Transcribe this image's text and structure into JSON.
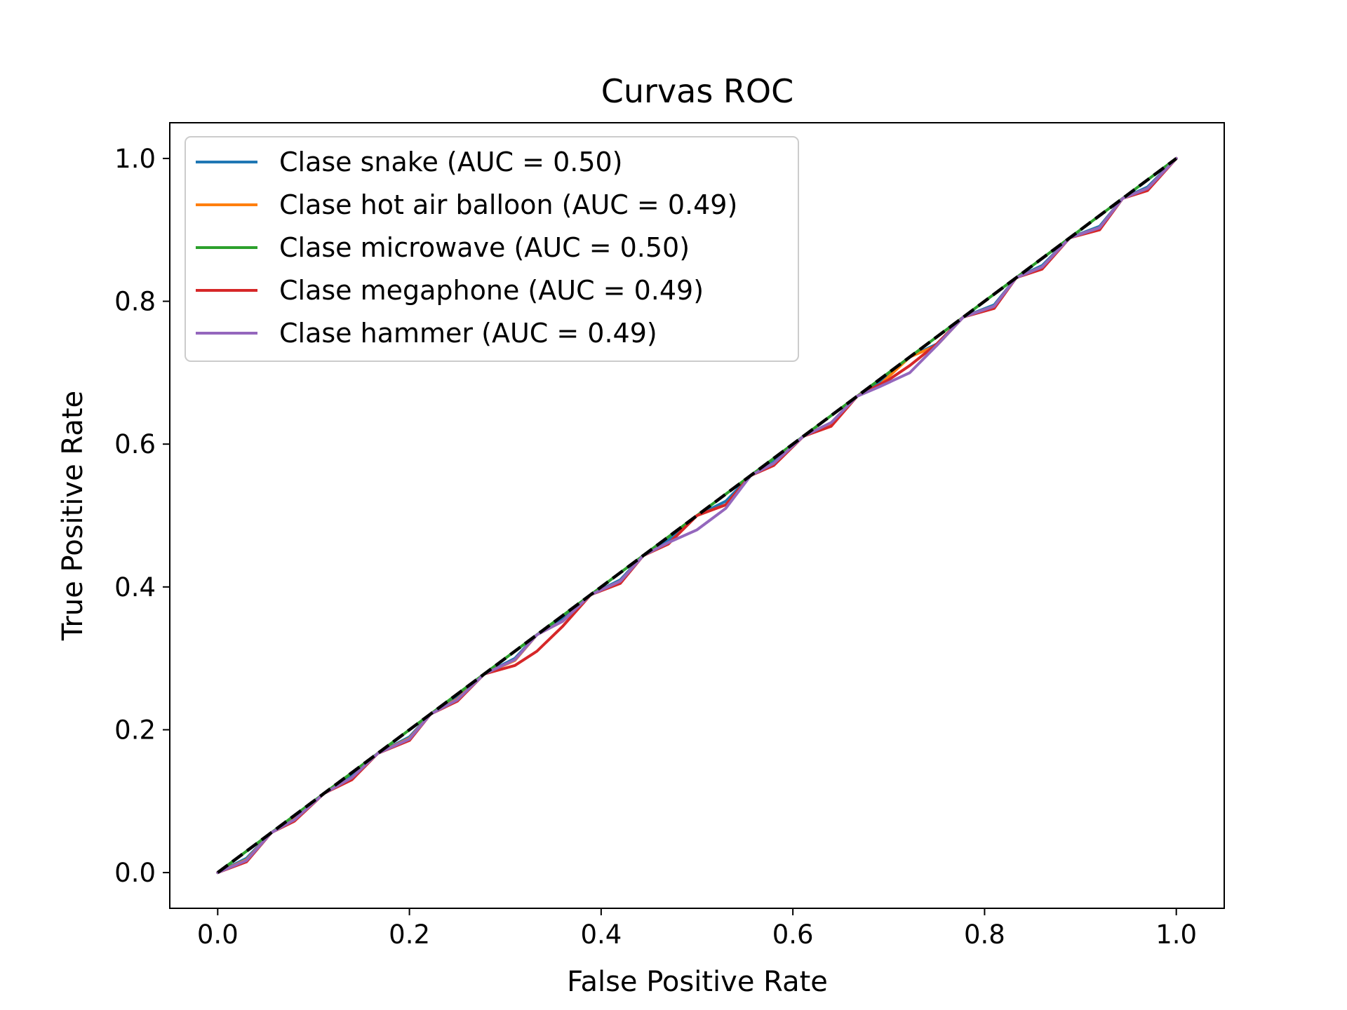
{
  "chart_data": {
    "type": "line",
    "title": "Curvas ROC",
    "xlabel": "False Positive Rate",
    "ylabel": "True Positive Rate",
    "xlim": [
      -0.05,
      1.05
    ],
    "ylim": [
      -0.05,
      1.05
    ],
    "xticks": [
      0.0,
      0.2,
      0.4,
      0.6,
      0.8,
      1.0
    ],
    "yticks": [
      0.0,
      0.2,
      0.4,
      0.6,
      0.8,
      1.0
    ],
    "xtick_labels": [
      "0.0",
      "0.2",
      "0.4",
      "0.6",
      "0.8",
      "1.0"
    ],
    "ytick_labels": [
      "0.0",
      "0.2",
      "0.4",
      "0.6",
      "0.8",
      "1.0"
    ],
    "grid": false,
    "legend_position": "upper-left",
    "series": [
      {
        "name": "Clase snake (AUC = 0.50)",
        "color": "#1f77b4",
        "x": [
          0.0,
          0.03,
          0.056,
          0.08,
          0.111,
          0.14,
          0.167,
          0.2,
          0.222,
          0.25,
          0.278,
          0.31,
          0.333,
          0.36,
          0.389,
          0.42,
          0.444,
          0.47,
          0.5,
          0.53,
          0.556,
          0.58,
          0.611,
          0.64,
          0.667,
          0.69,
          0.722,
          0.75,
          0.778,
          0.81,
          0.833,
          0.86,
          0.889,
          0.92,
          0.944,
          0.97,
          1.0
        ],
        "y": [
          0.0,
          0.02,
          0.056,
          0.076,
          0.111,
          0.135,
          0.167,
          0.19,
          0.222,
          0.245,
          0.278,
          0.3,
          0.333,
          0.355,
          0.389,
          0.41,
          0.444,
          0.465,
          0.5,
          0.52,
          0.556,
          0.575,
          0.611,
          0.63,
          0.667,
          0.685,
          0.722,
          0.74,
          0.778,
          0.795,
          0.833,
          0.85,
          0.889,
          0.905,
          0.944,
          0.96,
          1.0
        ]
      },
      {
        "name": "Clase hot air balloon (AUC = 0.49)",
        "color": "#ff7f0e",
        "x": [
          0.0,
          0.03,
          0.056,
          0.08,
          0.111,
          0.14,
          0.167,
          0.2,
          0.222,
          0.25,
          0.278,
          0.31,
          0.333,
          0.36,
          0.389,
          0.42,
          0.444,
          0.47,
          0.5,
          0.53,
          0.556,
          0.58,
          0.611,
          0.64,
          0.667,
          0.69,
          0.722,
          0.75,
          0.778,
          0.81,
          0.833,
          0.86,
          0.889,
          0.92,
          0.944,
          0.97,
          1.0
        ],
        "y": [
          0.0,
          0.018,
          0.056,
          0.075,
          0.111,
          0.132,
          0.167,
          0.188,
          0.222,
          0.243,
          0.278,
          0.297,
          0.333,
          0.352,
          0.389,
          0.408,
          0.444,
          0.46,
          0.5,
          0.515,
          0.556,
          0.572,
          0.611,
          0.628,
          0.667,
          0.682,
          0.722,
          0.738,
          0.778,
          0.793,
          0.833,
          0.848,
          0.889,
          0.903,
          0.944,
          0.958,
          1.0
        ]
      },
      {
        "name": "Clase microwave (AUC = 0.50)",
        "color": "#2ca02c",
        "x": [
          0.0,
          0.1,
          0.2,
          0.3,
          0.4,
          0.5,
          0.6,
          0.7,
          0.8,
          0.9,
          1.0
        ],
        "y": [
          0.0,
          0.1,
          0.2,
          0.3,
          0.4,
          0.5,
          0.6,
          0.7,
          0.8,
          0.9,
          1.0
        ]
      },
      {
        "name": "Clase megaphone (AUC = 0.49)",
        "color": "#d62728",
        "x": [
          0.0,
          0.03,
          0.056,
          0.08,
          0.111,
          0.14,
          0.167,
          0.2,
          0.222,
          0.25,
          0.278,
          0.31,
          0.333,
          0.36,
          0.389,
          0.42,
          0.444,
          0.47,
          0.5,
          0.53,
          0.556,
          0.58,
          0.611,
          0.64,
          0.667,
          0.7,
          0.722,
          0.75,
          0.778,
          0.81,
          0.833,
          0.86,
          0.889,
          0.92,
          0.944,
          0.97,
          1.0
        ],
        "y": [
          0.0,
          0.015,
          0.056,
          0.072,
          0.111,
          0.13,
          0.167,
          0.185,
          0.222,
          0.24,
          0.278,
          0.29,
          0.31,
          0.345,
          0.389,
          0.405,
          0.444,
          0.46,
          0.5,
          0.515,
          0.556,
          0.57,
          0.611,
          0.625,
          0.667,
          0.69,
          0.71,
          0.74,
          0.778,
          0.79,
          0.833,
          0.845,
          0.889,
          0.9,
          0.944,
          0.955,
          1.0
        ]
      },
      {
        "name": "Clase hammer (AUC = 0.49)",
        "color": "#9467bd",
        "x": [
          0.0,
          0.03,
          0.056,
          0.08,
          0.111,
          0.14,
          0.167,
          0.2,
          0.222,
          0.25,
          0.278,
          0.31,
          0.333,
          0.36,
          0.389,
          0.42,
          0.444,
          0.47,
          0.5,
          0.53,
          0.556,
          0.58,
          0.611,
          0.64,
          0.667,
          0.69,
          0.722,
          0.75,
          0.778,
          0.81,
          0.833,
          0.86,
          0.889,
          0.92,
          0.944,
          0.97,
          1.0
        ],
        "y": [
          0.0,
          0.017,
          0.056,
          0.074,
          0.111,
          0.133,
          0.167,
          0.187,
          0.222,
          0.242,
          0.278,
          0.298,
          0.333,
          0.352,
          0.389,
          0.408,
          0.444,
          0.462,
          0.48,
          0.51,
          0.556,
          0.573,
          0.611,
          0.63,
          0.667,
          0.68,
          0.7,
          0.738,
          0.778,
          0.793,
          0.833,
          0.848,
          0.889,
          0.903,
          0.944,
          0.958,
          1.0
        ]
      }
    ],
    "reference_line": {
      "x": [
        0.0,
        1.0
      ],
      "y": [
        0.0,
        1.0
      ],
      "color": "#000000",
      "style": "dashed"
    }
  }
}
